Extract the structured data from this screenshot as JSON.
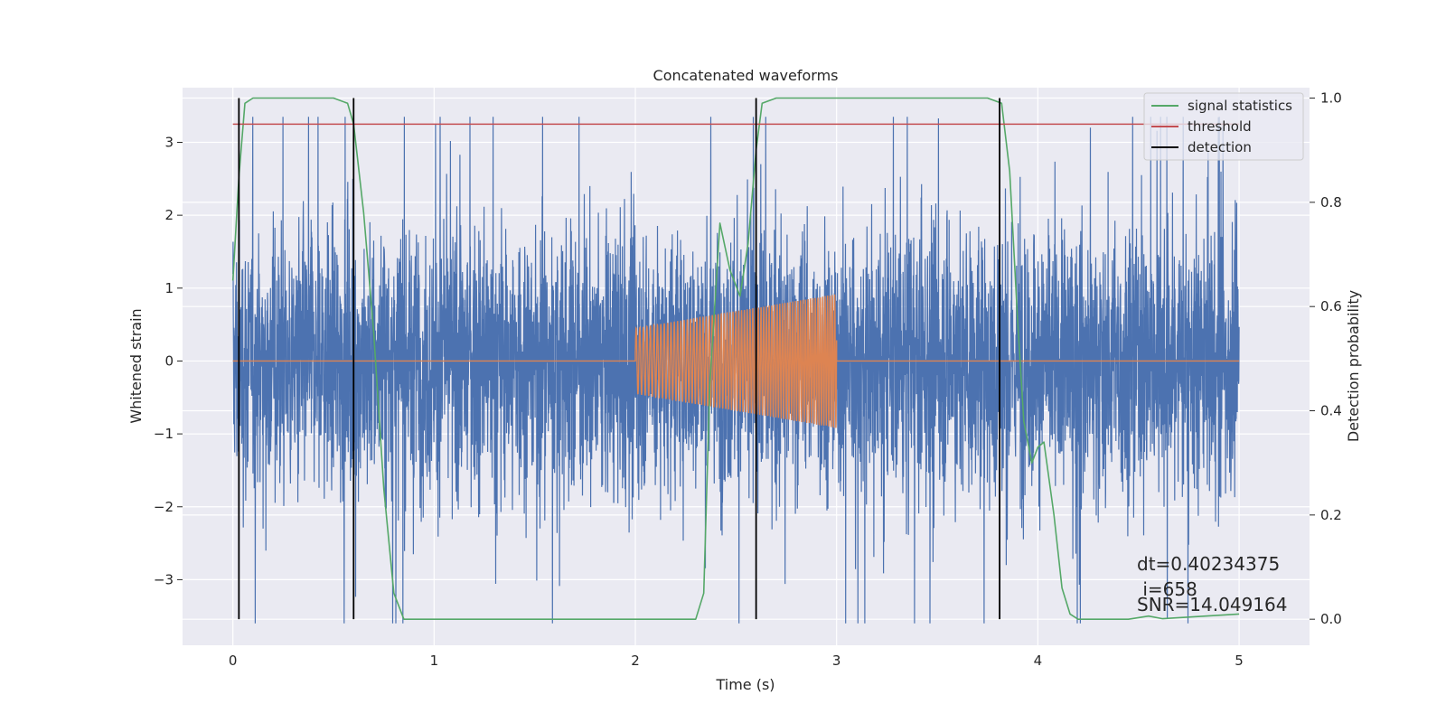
{
  "chart_data": {
    "type": "line",
    "title": "Concatenated waveforms",
    "xlabel": "Time (s)",
    "ylabel": "Whitened strain",
    "y2label": "Detection probability",
    "xlim": [
      -0.25,
      5.35
    ],
    "ylim": [
      -3.9,
      3.75
    ],
    "y2lim": [
      -0.05,
      1.02
    ],
    "x_ticks": [
      0,
      1,
      2,
      3,
      4,
      5
    ],
    "y_ticks": [
      -3,
      -2,
      -1,
      0,
      1,
      2,
      3
    ],
    "y2_ticks": [
      0.0,
      0.2,
      0.4,
      0.6,
      0.8,
      1.0
    ],
    "x_tick_labels": [
      "0",
      "1",
      "2",
      "3",
      "4",
      "5"
    ],
    "y_tick_labels": [
      "−3",
      "−2",
      "−1",
      "0",
      "1",
      "2",
      "3"
    ],
    "y2_tick_labels": [
      "0.0",
      "0.2",
      "0.4",
      "0.6",
      "0.8",
      "1.0"
    ],
    "grid": true,
    "legend_position": "top-right",
    "series": [
      {
        "name": "",
        "axis": "left",
        "color": "#4c72b0",
        "kind": "whitened noise strain",
        "x_range": [
          0,
          5
        ],
        "typical_amplitude": 0.9,
        "peak_max": 3.35,
        "peak_min": -3.6
      },
      {
        "name": "",
        "axis": "left",
        "color": "#dd8452",
        "kind": "injected chirp waveform",
        "x_range": [
          0,
          5
        ],
        "chirp_start": 2.0,
        "chirp_end": 3.0,
        "amplitude_start": 0.45,
        "amplitude_end": 0.92
      },
      {
        "name": "signal statistics",
        "axis": "right",
        "color": "#55a868",
        "x": [
          0,
          0.03,
          0.06,
          0.1,
          0.2,
          0.5,
          0.57,
          0.6,
          0.65,
          0.7,
          0.75,
          0.8,
          0.85,
          1.0,
          2.0,
          2.3,
          2.34,
          2.37,
          2.42,
          2.47,
          2.52,
          2.56,
          2.6,
          2.63,
          2.7,
          3.75,
          3.82,
          3.86,
          3.9,
          3.93,
          3.97,
          4.0,
          4.03,
          4.08,
          4.12,
          4.16,
          4.2,
          4.45,
          4.55,
          4.62,
          5.0
        ],
        "y": [
          0.65,
          0.85,
          0.99,
          1.0,
          1.0,
          1.0,
          0.99,
          0.95,
          0.78,
          0.55,
          0.25,
          0.05,
          0.0,
          0.0,
          0.0,
          0.0,
          0.05,
          0.45,
          0.76,
          0.67,
          0.62,
          0.72,
          0.9,
          0.99,
          1.0,
          1.0,
          0.99,
          0.86,
          0.57,
          0.38,
          0.3,
          0.33,
          0.34,
          0.2,
          0.06,
          0.01,
          0.0,
          0.0,
          0.006,
          0.001,
          0.01
        ]
      },
      {
        "name": "threshold",
        "axis": "right",
        "color": "#c44e52",
        "x": [
          0,
          5
        ],
        "y": [
          0.95,
          0.95
        ]
      },
      {
        "name": "detection",
        "axis": "right",
        "color": "#000000",
        "kind": "vertical lines",
        "x": [
          0.03,
          0.6,
          2.6,
          3.81
        ],
        "y_range": [
          0.0,
          1.0
        ]
      }
    ],
    "annotations": [
      {
        "lines": [
          "dt=0.40234375",
          " i=658",
          "SNR=14.049164"
        ],
        "x": 4.5,
        "y": -3.05
      }
    ]
  }
}
